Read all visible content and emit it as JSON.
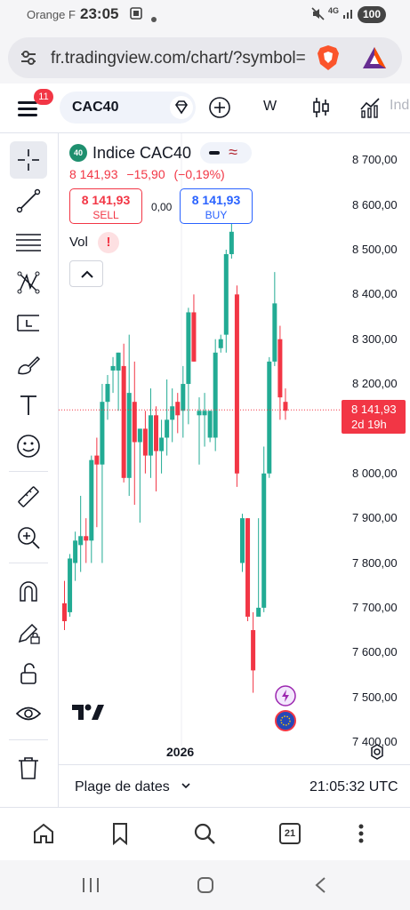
{
  "status_bar": {
    "carrier": "Orange F",
    "time": "23:05",
    "battery": "100",
    "network": "4G"
  },
  "browser": {
    "url": "fr.tradingview.com/chart/?symbol=",
    "tabs_count": "21"
  },
  "toolbar": {
    "notifications": "11",
    "symbol": "CAC40",
    "interval": "W",
    "indicators_label": "Ind"
  },
  "legend": {
    "badge": "40",
    "title": "Indice CAC40",
    "approx_symbol": "≈",
    "last": "8 141,93",
    "change": "−15,90",
    "change_pct": "(−0,19%)"
  },
  "trade": {
    "sell_price": "8 141,93",
    "sell_label": "SELL",
    "spread": "0,00",
    "buy_price": "8 141,93",
    "buy_label": "BUY"
  },
  "volume": {
    "label": "Vol",
    "warning": "!"
  },
  "price_axis": [
    "8 700,00",
    "8 600,00",
    "8 500,00",
    "8 400,00",
    "8 300,00",
    "8 200,00",
    "8 000,00",
    "7 900,00",
    "7 800,00",
    "7 700,00",
    "7 600,00",
    "7 500,00",
    "7 400,00"
  ],
  "current_price": {
    "value": "8 141,93",
    "countdown": "2d 19h",
    "color": "#f23645"
  },
  "time_axis": {
    "year_label": "2026"
  },
  "footer": {
    "date_range": "Plage de dates",
    "clock": "21:05:32 UTC"
  },
  "colors": {
    "up": "#22ab94",
    "down": "#f23645",
    "accent": "#2962ff"
  },
  "chart_data": {
    "type": "candlestick",
    "title": "Indice CAC40",
    "interval": "W",
    "ylim": [
      7390,
      8760
    ],
    "price_ticks": [
      8700,
      8600,
      8500,
      8400,
      8300,
      8200,
      8000,
      7900,
      7800,
      7700,
      7600,
      7500,
      7400
    ],
    "last_price": 8141.93,
    "x_marker": "2026",
    "candles": [
      [
        7710,
        7670,
        7760,
        7650
      ],
      [
        7690,
        7810,
        7820,
        7680
      ],
      [
        7800,
        7850,
        7870,
        7760
      ],
      [
        7840,
        7860,
        7950,
        7780
      ],
      [
        7860,
        7850,
        7900,
        7800
      ],
      [
        7850,
        8030,
        8040,
        7800
      ],
      [
        8040,
        8020,
        8080,
        7880
      ],
      [
        8020,
        8160,
        8200,
        7800
      ],
      [
        8160,
        8200,
        8220,
        8120
      ],
      [
        8230,
        8240,
        8260,
        8180
      ],
      [
        8230,
        8270,
        8270,
        8140
      ],
      [
        8240,
        7990,
        8290,
        7980
      ],
      [
        7990,
        8180,
        8310,
        7950
      ],
      [
        8160,
        8070,
        8250,
        7930
      ],
      [
        8070,
        8100,
        8100,
        7890
      ],
      [
        8100,
        8040,
        8140,
        8000
      ],
      [
        8040,
        8130,
        8190,
        7990
      ],
      [
        8130,
        8050,
        8150,
        7960
      ],
      [
        8050,
        8080,
        8120,
        8000
      ],
      [
        8080,
        8120,
        8210,
        8040
      ],
      [
        8120,
        8150,
        8190,
        8070
      ],
      [
        8160,
        8130,
        8180,
        8090
      ],
      [
        8140,
        8200,
        8240,
        8080
      ],
      [
        8200,
        8360,
        8370,
        8110
      ],
      [
        8360,
        8250,
        8400,
        8250
      ],
      [
        8130,
        8140,
        8170,
        8020
      ],
      [
        8130,
        8140,
        8180,
        8060
      ],
      [
        8080,
        8140,
        8140,
        8070
      ],
      [
        8080,
        8270,
        8300,
        8050
      ],
      [
        8280,
        8300,
        8310,
        8270
      ],
      [
        8310,
        8490,
        8500,
        8270
      ],
      [
        8490,
        8540,
        8570,
        8480
      ],
      [
        8400,
        8000,
        8420,
        7970
      ],
      [
        7800,
        7900,
        7910,
        7780
      ],
      [
        7900,
        7680,
        7900,
        7670
      ],
      [
        7650,
        7560,
        7690,
        7510
      ],
      [
        7680,
        7700,
        7900,
        7690
      ],
      [
        7700,
        8000,
        8060,
        7690
      ],
      [
        8000,
        8250,
        8260,
        7990
      ],
      [
        8250,
        8380,
        8450,
        8240
      ],
      [
        8300,
        8170,
        8330,
        8120
      ],
      [
        8160,
        8140,
        8190,
        8120
      ]
    ]
  }
}
